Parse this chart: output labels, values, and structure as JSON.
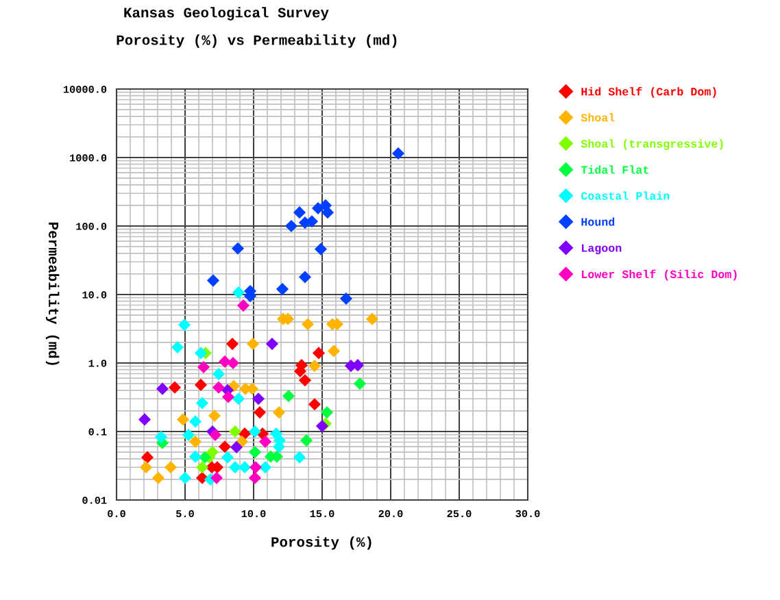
{
  "chart_data": {
    "type": "scatter",
    "title": "Kansas Geological Survey",
    "subtitle": "Porosity (%) vs Permeability (md)",
    "xlabel": "Porosity (%)",
    "ylabel": "Permeability (md)",
    "xlim": [
      0,
      30
    ],
    "ylim": [
      0.01,
      10000
    ],
    "log": "y",
    "grid": true,
    "legend": "right",
    "marker": "diamond",
    "xticks": [
      {
        "value": 0,
        "label": "0.0"
      },
      {
        "value": 5,
        "label": "5.0"
      },
      {
        "value": 10,
        "label": "10.0"
      },
      {
        "value": 15,
        "label": "15.0"
      },
      {
        "value": 20,
        "label": "20.0"
      },
      {
        "value": 25,
        "label": "25.0"
      },
      {
        "value": 30,
        "label": "30.0"
      }
    ],
    "yticks": [
      0.01,
      0.1,
      {
        "value": 1,
        "label": "1.0"
      },
      {
        "value": 10,
        "label": "10.0"
      },
      {
        "value": 100,
        "label": "100.0"
      },
      {
        "value": 1000,
        "label": "1000.0"
      },
      {
        "value": 10000,
        "label": "10000.0"
      }
    ],
    "series": [
      {
        "name": "Hid Shelf (Carb Dom)",
        "color": "#ff0000",
        "x": [
          2.25,
          4.25,
          6.15,
          8.45,
          6.25,
          6.95,
          7.35,
          7.9,
          9.35,
          10.65,
          10.45,
          14.45,
          14.75,
          13.5,
          13.4,
          13.75
        ],
        "values": [
          0.042,
          0.44,
          0.48,
          1.9,
          0.021,
          0.03,
          0.03,
          0.06,
          0.093,
          0.093,
          0.19,
          0.25,
          1.4,
          0.93,
          0.76,
          0.56
        ]
      },
      {
        "name": "Shoal",
        "color": "#ffb400",
        "x": [
          8.55,
          9.4,
          9.9,
          4.85,
          7.15,
          5.75,
          9.15,
          2.15,
          3.95,
          3.05,
          11.85,
          12.15,
          12.5,
          13.95,
          15.75,
          16.1,
          18.65,
          9.95,
          15.85,
          14.45
        ],
        "values": [
          0.46,
          0.42,
          0.42,
          0.15,
          0.17,
          0.071,
          0.071,
          0.03,
          0.03,
          0.021,
          0.19,
          4.4,
          4.4,
          3.7,
          3.7,
          3.7,
          4.4,
          1.9,
          1.5,
          0.91
        ]
      },
      {
        "name": "Shoal (transgressive)",
        "color": "#80ff00",
        "x": [
          6.5,
          8.65,
          7.0,
          6.25,
          15.25,
          6.75
        ],
        "values": [
          1.4,
          0.1,
          0.05,
          0.03,
          0.13,
          0.042
        ]
      },
      {
        "name": "Tidal Flat",
        "color": "#00ff40",
        "x": [
          3.35,
          6.45,
          12.55,
          15.35,
          13.85,
          10.1,
          11.25,
          11.7,
          17.75
        ],
        "values": [
          0.068,
          0.042,
          0.33,
          0.19,
          0.074,
          0.05,
          0.043,
          0.043,
          0.5
        ]
      },
      {
        "name": "Coastal Plain",
        "color": "#00ffff",
        "x": [
          4.95,
          4.45,
          6.15,
          7.45,
          8.9,
          6.25,
          8.9,
          5.75,
          3.25,
          5.25,
          5.75,
          8.1,
          8.65,
          9.35,
          5.0,
          6.85,
          10.1,
          11.65,
          11.9,
          11.85,
          13.35,
          10.85
        ],
        "values": [
          3.6,
          1.7,
          1.4,
          0.69,
          10.7,
          0.26,
          0.3,
          0.14,
          0.083,
          0.089,
          0.043,
          0.042,
          0.03,
          0.03,
          0.021,
          0.02,
          0.1,
          0.093,
          0.074,
          0.06,
          0.042,
          0.03
        ]
      },
      {
        "name": "Hound",
        "color": "#0040ff",
        "x": [
          20.55,
          13.35,
          14.7,
          15.25,
          15.4,
          13.75,
          14.25,
          12.75,
          8.85,
          14.9,
          13.75,
          7.05,
          12.1,
          9.75,
          9.75,
          16.75
        ],
        "values": [
          1150,
          158,
          182,
          200,
          158,
          112,
          117,
          100,
          47,
          46,
          18,
          16,
          12,
          11.2,
          9.5,
          8.7
        ]
      },
      {
        "name": "Lagoon",
        "color": "#8000ff",
        "x": [
          3.35,
          2.05,
          7.0,
          8.75,
          11.35,
          17.1,
          17.6,
          10.35,
          15.0,
          8.1
        ],
        "values": [
          0.42,
          0.15,
          0.1,
          0.059,
          1.9,
          0.91,
          0.93,
          0.3,
          0.12,
          0.4
        ]
      },
      {
        "name": "Lower Shelf (Silic Dom)",
        "color": "#ff00c0",
        "x": [
          9.25,
          7.9,
          8.5,
          6.35,
          7.45,
          8.15,
          7.2,
          7.3,
          10.85,
          10.15,
          10.1
        ],
        "values": [
          6.9,
          1.05,
          1.0,
          0.87,
          0.44,
          0.32,
          0.089,
          0.021,
          0.071,
          0.03,
          0.021
        ]
      }
    ]
  }
}
